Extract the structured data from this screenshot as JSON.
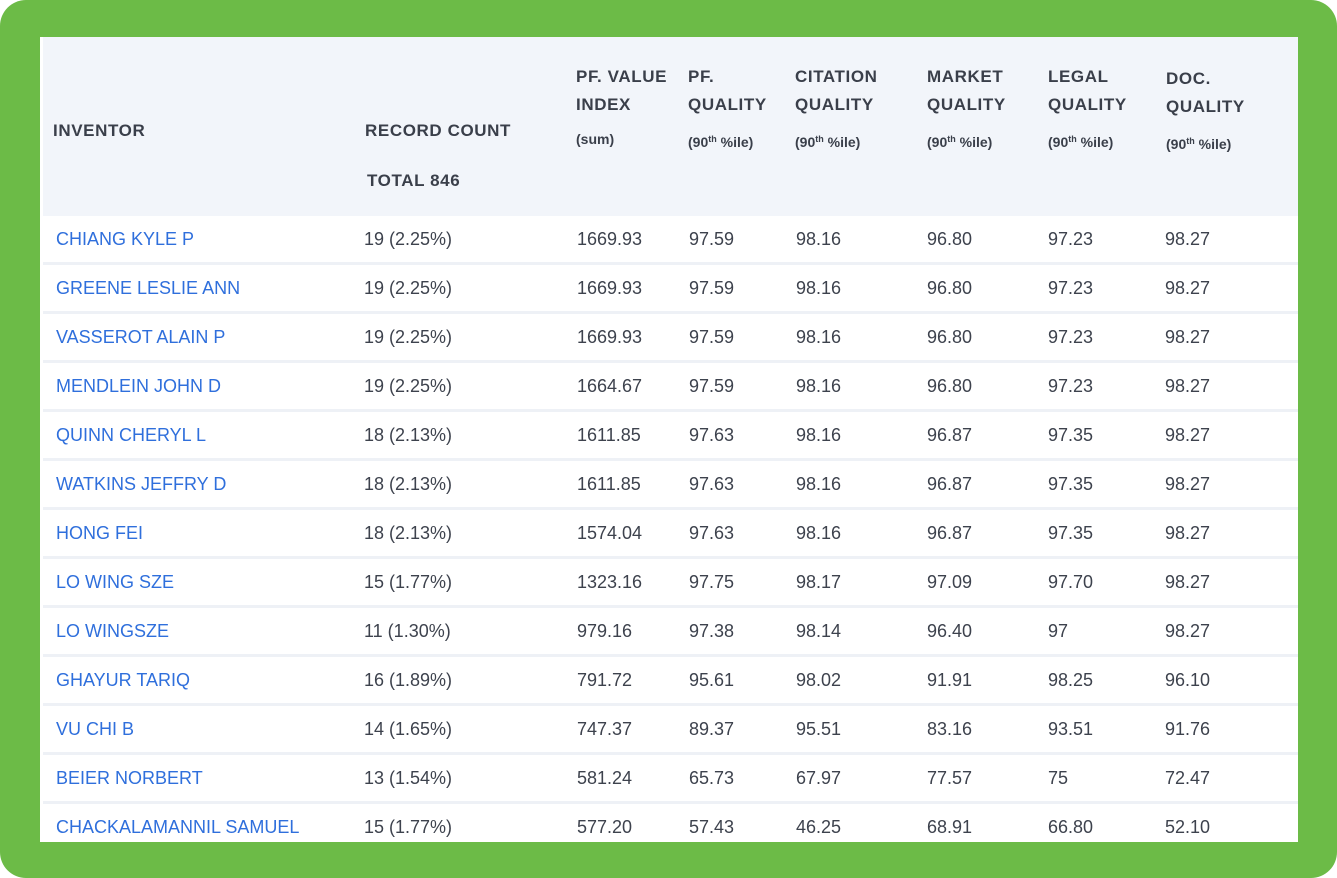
{
  "header": {
    "inventor": "INVENTOR",
    "record_count": "RECORD COUNT",
    "total": "TOTAL 846",
    "columns": [
      {
        "line1": "PF. VALUE",
        "line2": "INDEX",
        "sub": "(sum)"
      },
      {
        "line1": "PF.",
        "line2": "QUALITY",
        "sub_pre": "(90",
        "sub_sup": "th",
        "sub_post": " %ile)"
      },
      {
        "line1": "CITATION",
        "line2": "QUALITY",
        "sub_pre": "(90",
        "sub_sup": "th",
        "sub_post": " %ile)"
      },
      {
        "line1": "MARKET",
        "line2": "QUALITY",
        "sub_pre": "(90",
        "sub_sup": "th",
        "sub_post": " %ile)"
      },
      {
        "line1": "LEGAL",
        "line2": "QUALITY",
        "sub_pre": "(90",
        "sub_sup": "th",
        "sub_post": " %ile)"
      },
      {
        "line1": "DOC.",
        "line2": "QUALITY",
        "sub_pre": "(90",
        "sub_sup": "th",
        "sub_post": " %ile)"
      }
    ]
  },
  "rows": [
    {
      "inventor": "CHIANG KYLE P",
      "count": "19 (2.25%)",
      "value_index": "1669.93",
      "pf_quality": "97.59",
      "citation": "98.16",
      "market": "96.80",
      "legal": "97.23",
      "doc": "98.27"
    },
    {
      "inventor": "GREENE LESLIE ANN",
      "count": "19 (2.25%)",
      "value_index": "1669.93",
      "pf_quality": "97.59",
      "citation": "98.16",
      "market": "96.80",
      "legal": "97.23",
      "doc": "98.27"
    },
    {
      "inventor": "VASSEROT ALAIN P",
      "count": "19 (2.25%)",
      "value_index": "1669.93",
      "pf_quality": "97.59",
      "citation": "98.16",
      "market": "96.80",
      "legal": "97.23",
      "doc": "98.27"
    },
    {
      "inventor": "MENDLEIN JOHN D",
      "count": "19 (2.25%)",
      "value_index": "1664.67",
      "pf_quality": "97.59",
      "citation": "98.16",
      "market": "96.80",
      "legal": "97.23",
      "doc": "98.27"
    },
    {
      "inventor": "QUINN CHERYL L",
      "count": "18 (2.13%)",
      "value_index": "1611.85",
      "pf_quality": "97.63",
      "citation": "98.16",
      "market": "96.87",
      "legal": "97.35",
      "doc": "98.27"
    },
    {
      "inventor": "WATKINS JEFFRY D",
      "count": "18 (2.13%)",
      "value_index": "1611.85",
      "pf_quality": "97.63",
      "citation": "98.16",
      "market": "96.87",
      "legal": "97.35",
      "doc": "98.27"
    },
    {
      "inventor": "HONG FEI",
      "count": "18 (2.13%)",
      "value_index": "1574.04",
      "pf_quality": "97.63",
      "citation": "98.16",
      "market": "96.87",
      "legal": "97.35",
      "doc": "98.27"
    },
    {
      "inventor": "LO WING SZE",
      "count": "15 (1.77%)",
      "value_index": "1323.16",
      "pf_quality": "97.75",
      "citation": "98.17",
      "market": "97.09",
      "legal": "97.70",
      "doc": "98.27"
    },
    {
      "inventor": "LO WINGSZE",
      "count": "11 (1.30%)",
      "value_index": "979.16",
      "pf_quality": "97.38",
      "citation": "98.14",
      "market": "96.40",
      "legal": "97",
      "doc": "98.27"
    },
    {
      "inventor": "GHAYUR TARIQ",
      "count": "16 (1.89%)",
      "value_index": "791.72",
      "pf_quality": "95.61",
      "citation": "98.02",
      "market": "91.91",
      "legal": "98.25",
      "doc": "96.10"
    },
    {
      "inventor": "VU CHI B",
      "count": "14 (1.65%)",
      "value_index": "747.37",
      "pf_quality": "89.37",
      "citation": "95.51",
      "market": "83.16",
      "legal": "93.51",
      "doc": "91.76"
    },
    {
      "inventor": "BEIER NORBERT",
      "count": "13 (1.54%)",
      "value_index": "581.24",
      "pf_quality": "65.73",
      "citation": "67.97",
      "market": "77.57",
      "legal": "75",
      "doc": "72.47"
    },
    {
      "inventor": "CHACKALAMANNIL SAMUEL",
      "count": "15 (1.77%)",
      "value_index": "577.20",
      "pf_quality": "57.43",
      "citation": "46.25",
      "market": "68.91",
      "legal": "66.80",
      "doc": "52.10"
    }
  ]
}
